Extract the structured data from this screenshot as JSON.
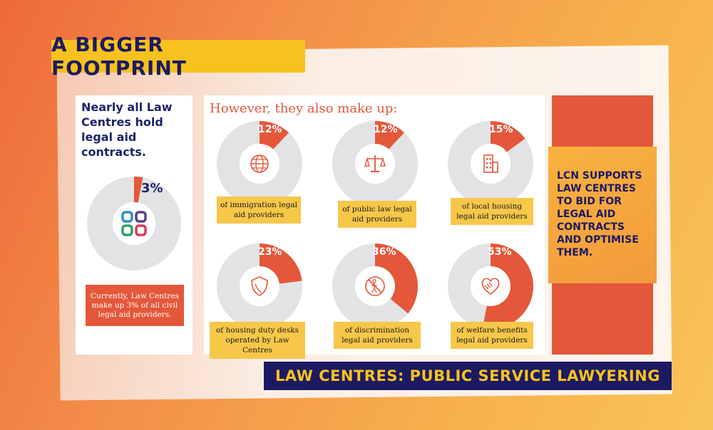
{
  "title": "A BIGGER FOOTPRINT",
  "left_panel": {
    "heading": "Nearly all Law Centres hold legal aid contracts.",
    "percent": "3%",
    "percent_value": 3,
    "note": "Currently, Law Centres make up 3% of all civil legal aid providers."
  },
  "mid_panel": {
    "heading": "However, they also make up:",
    "items": [
      {
        "percent": "12%",
        "value": 12,
        "icon": "globe-icon",
        "label": "of immigration legal aid providers"
      },
      {
        "percent": "12%",
        "value": 12,
        "icon": "scales-icon",
        "label": "of public law legal aid providers"
      },
      {
        "percent": "15%",
        "value": 15,
        "icon": "building-icon",
        "label": "of local housing legal aid providers"
      },
      {
        "percent": "23%",
        "value": 23,
        "icon": "shield-icon",
        "label": "of housing duty desks operated by Law Centres"
      },
      {
        "percent": "36%",
        "value": 36,
        "icon": "no-discrimination-icon",
        "label": "of discrimination legal aid providers"
      },
      {
        "percent": "53%",
        "value": 53,
        "icon": "heart-handshake-icon",
        "label": "of welfare benefits legal aid providers"
      }
    ]
  },
  "right_panel": {
    "text": "LCN SUPPORTS LAW CENTRES TO BID FOR LEGAL AID CONTRACTS AND OPTIMISE THEM."
  },
  "footer": "LAW CENTRES: PUBLIC SERVICE LAWYERING",
  "colors": {
    "accent_red": "#e4573a",
    "navy": "#1c1a63",
    "yellow": "#f7c21e",
    "donut_gray": "#e3e3e6"
  }
}
